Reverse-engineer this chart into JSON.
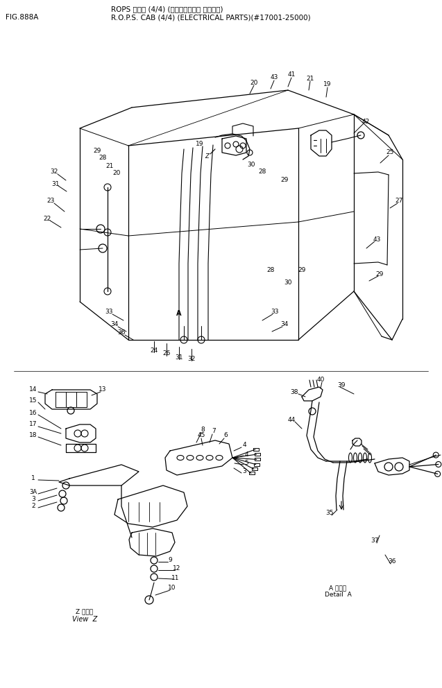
{
  "title_line1": "ROPS キャブ (4/4) (エレクトリカル ハーネス)",
  "title_line2": "R.O.P.S. CAB (4/4) (ELECTRICAL PARTS)(#17001-25000)",
  "fig_label": "FIG.888A",
  "bg_color": "#ffffff",
  "line_color": "#000000",
  "text_color": "#000000"
}
